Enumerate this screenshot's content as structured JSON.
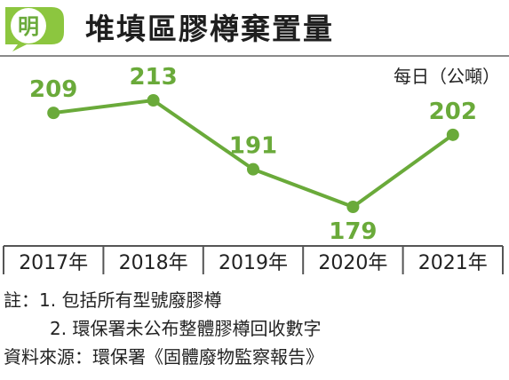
{
  "header": {
    "logo_char": "明",
    "title": "堆填區膠樽棄置量",
    "unit": "每日（公噸）"
  },
  "colors": {
    "line": "#6aaa3a",
    "label": "#6aaa3a",
    "logo": "#8cc63f",
    "axis": "#555555",
    "text": "#222222"
  },
  "chart_data": {
    "type": "line",
    "categories": [
      "2017年",
      "2018年",
      "2019年",
      "2020年",
      "2021年"
    ],
    "series": [
      {
        "values": [
          209,
          213,
          191,
          179,
          202
        ]
      }
    ],
    "data_labels": [
      "209",
      "213",
      "191",
      "179",
      "202"
    ],
    "ylabel": "每日（公噸）",
    "ylim": [
      170,
      220
    ],
    "grid": false
  },
  "notes": [
    "註：1. 包括所有型號廢膠樽",
    "2. 環保署未公布整體膠樽回收數字",
    "資料來源：環保署《固體廢物監察報告》"
  ]
}
